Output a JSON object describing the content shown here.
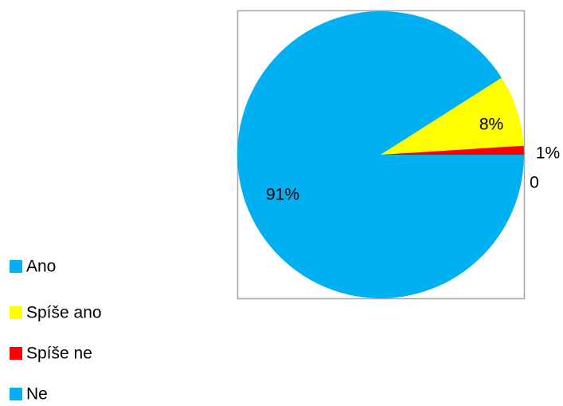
{
  "chart_data": {
    "type": "pie",
    "categories": [
      "Ano",
      "Spíše ano",
      "Spíše ne",
      "Ne"
    ],
    "values": [
      91,
      8,
      1,
      0
    ],
    "value_labels": [
      "91%",
      "8%",
      "1%",
      "0"
    ],
    "colors": [
      "#00b0f0",
      "#ffff00",
      "#ff0000",
      "#00b0f0"
    ],
    "legend": "left"
  }
}
